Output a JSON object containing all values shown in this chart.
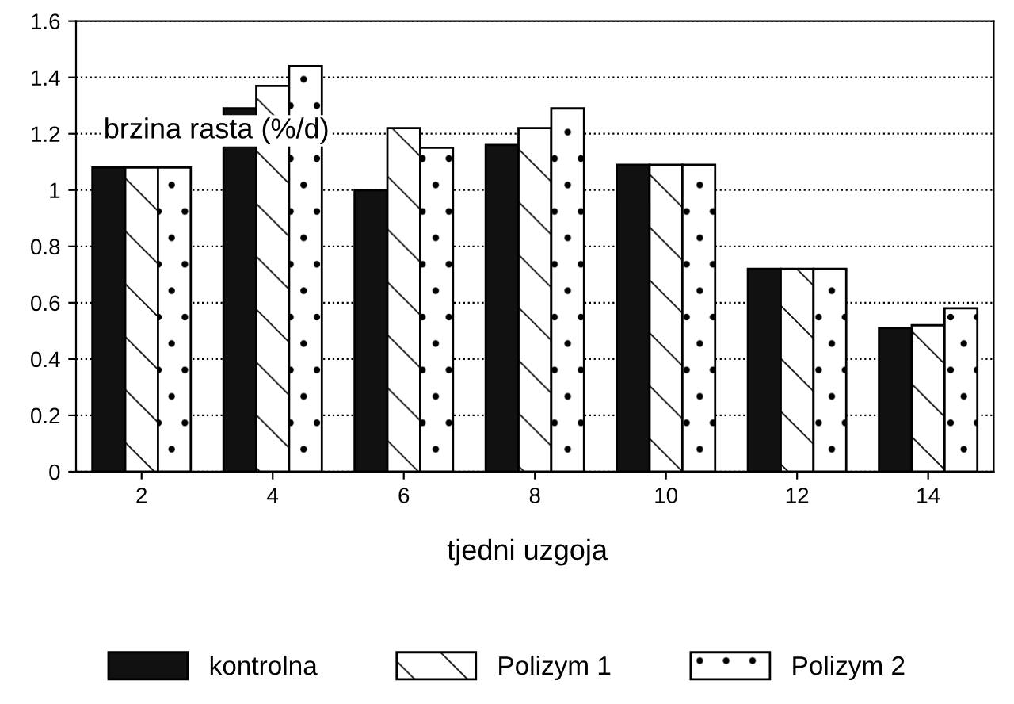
{
  "chart_data": {
    "type": "bar",
    "ylabel": "brzina rasta (%/d)",
    "xlabel": "tjedni uzgoja",
    "categories": [
      "2",
      "4",
      "6",
      "8",
      "10",
      "12",
      "14"
    ],
    "series": [
      {
        "name": "kontrolna",
        "color": "#111111",
        "values": [
          1.08,
          1.29,
          1.0,
          1.16,
          1.09,
          0.72,
          0.51
        ]
      },
      {
        "name": "Polizym 1",
        "color": "#ffffff",
        "values": [
          1.08,
          1.37,
          1.22,
          1.22,
          1.09,
          0.72,
          0.52
        ]
      },
      {
        "name": "Polizym 2",
        "color": "#ffffff",
        "values": [
          1.08,
          1.44,
          1.15,
          1.29,
          1.09,
          0.72,
          0.58
        ]
      }
    ],
    "ylim": [
      0,
      1.6
    ],
    "yticks": [
      "0",
      {
        "value": 0.2,
        "label": "0.2"
      },
      {
        "value": 0.4,
        "label": "0.4"
      },
      {
        "value": 0.6,
        "label": "0.6"
      },
      {
        "value": 0.8,
        "label": "0.8"
      },
      1,
      {
        "value": 1.2,
        "label": "1.2"
      },
      {
        "value": 1.4,
        "label": "1.4"
      },
      {
        "value": 1.6,
        "label": "1.6"
      }
    ],
    "grid": "y",
    "legend": "bottom"
  }
}
